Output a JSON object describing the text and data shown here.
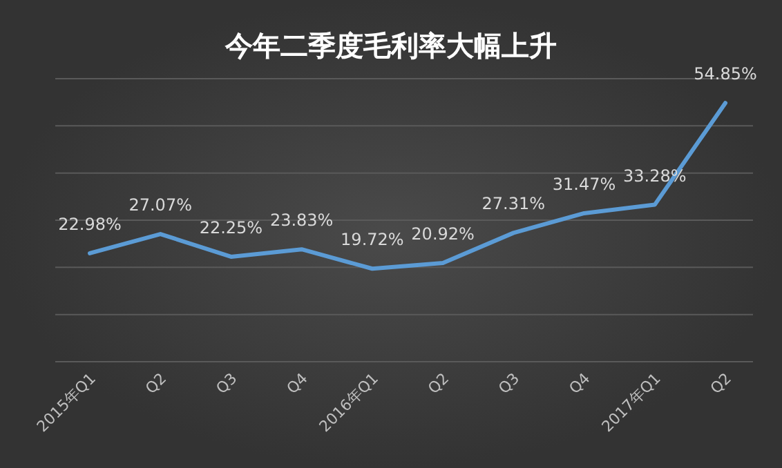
{
  "chart_data": {
    "type": "line",
    "title": "今年二季度毛利率大幅上升",
    "categories": [
      "2015年Q1",
      "Q2",
      "Q3",
      "Q4",
      "2016年Q1",
      "Q2",
      "Q3",
      "Q4",
      "2017年Q1",
      "Q2"
    ],
    "series": [
      {
        "color": "#5b9bd5",
        "values": [
          22.98,
          27.07,
          22.25,
          23.83,
          19.72,
          20.92,
          27.31,
          31.47,
          33.28,
          54.85
        ],
        "value_labels": [
          "22.98%",
          "27.07%",
          "22.25%",
          "23.83%",
          "19.72%",
          "20.92%",
          "27.31%",
          "31.47%",
          "33.28%",
          "54.85%"
        ]
      }
    ],
    "ylim": [
      0,
      60
    ],
    "yticks": [
      {
        "value": 0,
        "label": null
      },
      {
        "value": 10,
        "label": null
      },
      {
        "value": 20,
        "label": null
      },
      {
        "value": 30,
        "label": null
      },
      {
        "value": 40,
        "label": null
      },
      {
        "value": 50,
        "label": null
      },
      {
        "value": 60,
        "label": null
      }
    ],
    "tick_labels": "x",
    "grid": "y",
    "marker": "none",
    "line_style": "solid"
  }
}
